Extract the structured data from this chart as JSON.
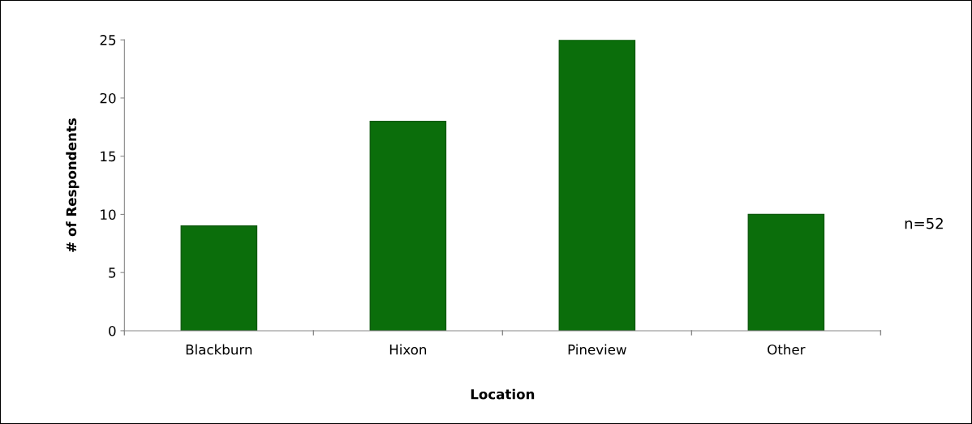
{
  "chart_data": {
    "type": "bar",
    "xlabel": "Location",
    "ylabel": "# of Respondents",
    "categories": [
      "Blackburn",
      "Hixon",
      "Pineview",
      "Other"
    ],
    "values": [
      9,
      18,
      25,
      10
    ],
    "color": "#0b6e0b",
    "ylim": [
      0,
      25
    ],
    "yticks": [
      0,
      5,
      10,
      15,
      20,
      25
    ],
    "grid": false,
    "legend": false,
    "annotations": [
      "n=52"
    ]
  }
}
